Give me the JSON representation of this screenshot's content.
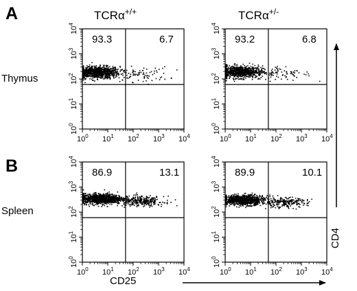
{
  "figure": {
    "panel_labels": [
      "A",
      "B"
    ],
    "column_headers": [
      {
        "base": "TCRα",
        "sup": "+/+"
      },
      {
        "base": "TCRα",
        "sup": "+/-"
      }
    ],
    "row_labels": [
      "Thymus",
      "Spleen"
    ],
    "x_axis_label": "CD25",
    "y_axis_label": "CD4",
    "tick_label_base": "10",
    "tick_exponents": [
      "0",
      "1",
      "2",
      "3",
      "4"
    ]
  },
  "chart_data": [
    {
      "type": "scatter",
      "row": "Thymus",
      "column": "TCRα+/+",
      "scale": "log",
      "xlim": [
        1,
        10000
      ],
      "ylim": [
        1,
        10000
      ],
      "gates": {
        "x": 50,
        "y": 60
      },
      "quadrant_values": {
        "upper_left": "93.3",
        "upper_right": "6.7"
      },
      "populations": [
        {
          "n": 900,
          "x_log_mean": 0.55,
          "x_log_sd": 0.45,
          "y_log_mean": 2.28,
          "y_log_sd": 0.12
        },
        {
          "n": 80,
          "x_log_mean": 2.3,
          "x_log_sd": 0.55,
          "y_log_mean": 2.2,
          "y_log_sd": 0.15
        }
      ]
    },
    {
      "type": "scatter",
      "row": "Thymus",
      "column": "TCRα+/-",
      "scale": "log",
      "xlim": [
        1,
        10000
      ],
      "ylim": [
        1,
        10000
      ],
      "gates": {
        "x": 50,
        "y": 60
      },
      "quadrant_values": {
        "upper_left": "93.2",
        "upper_right": "6.8"
      },
      "populations": [
        {
          "n": 800,
          "x_log_mean": 0.55,
          "x_log_sd": 0.45,
          "y_log_mean": 2.3,
          "y_log_sd": 0.12
        },
        {
          "n": 75,
          "x_log_mean": 2.3,
          "x_log_sd": 0.55,
          "y_log_mean": 2.25,
          "y_log_sd": 0.15
        }
      ]
    },
    {
      "type": "scatter",
      "row": "Spleen",
      "column": "TCRα+/+",
      "scale": "log",
      "xlim": [
        1,
        10000
      ],
      "ylim": [
        1,
        10000
      ],
      "gates": {
        "x": 50,
        "y": 60
      },
      "quadrant_values": {
        "upper_left": "86.9",
        "upper_right": "13.1"
      },
      "populations": [
        {
          "n": 950,
          "x_log_mean": 0.7,
          "x_log_sd": 0.42,
          "y_log_mean": 2.55,
          "y_log_sd": 0.1
        },
        {
          "n": 300,
          "x_log_mean": 2.3,
          "x_log_sd": 0.45,
          "y_log_mean": 2.45,
          "y_log_sd": 0.1
        }
      ]
    },
    {
      "type": "scatter",
      "row": "Spleen",
      "column": "TCRα+/-",
      "scale": "log",
      "xlim": [
        1,
        10000
      ],
      "ylim": [
        1,
        10000
      ],
      "gates": {
        "x": 50,
        "y": 60
      },
      "quadrant_values": {
        "upper_left": "89.9",
        "upper_right": "10.1"
      },
      "populations": [
        {
          "n": 900,
          "x_log_mean": 0.7,
          "x_log_sd": 0.42,
          "y_log_mean": 2.5,
          "y_log_sd": 0.1
        },
        {
          "n": 230,
          "x_log_mean": 2.3,
          "x_log_sd": 0.45,
          "y_log_mean": 2.4,
          "y_log_sd": 0.1
        }
      ]
    }
  ]
}
